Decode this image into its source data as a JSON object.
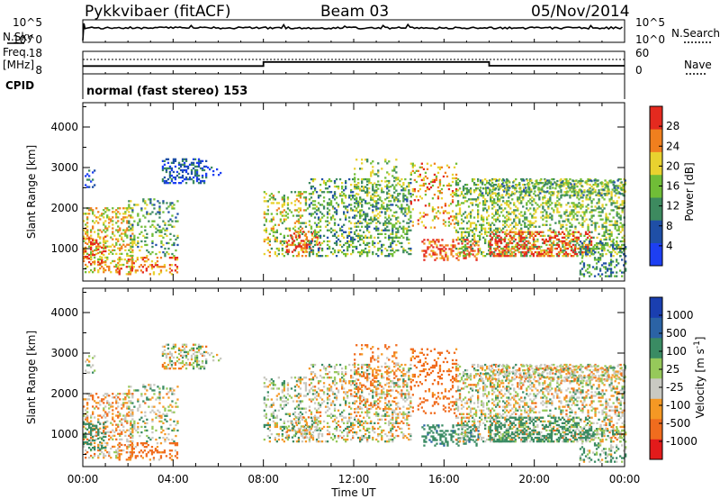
{
  "header": {
    "station": "Pykkvibaer (fitACF)",
    "beam": "Beam 03",
    "date": "05/Nov/2014"
  },
  "panel_labels": {
    "nsky": "N.Sky",
    "nsearch": "N.Search",
    "freq_line1": "Freq.",
    "freq_line2": "[MHz]",
    "nave": "Nave",
    "cpid": "CPID",
    "cpid_text": "normal (fast stereo) 153"
  },
  "colors": {
    "power": [
      "#1d3ff2",
      "#1f4fa6",
      "#3d8a5f",
      "#70bd37",
      "#e8d22f",
      "#f07f1e",
      "#e42a1f"
    ],
    "velocity": [
      "#e21b1b",
      "#f06c1e",
      "#f59824",
      "#c9c9c2",
      "#96c95a",
      "#3a8b63",
      "#2b63a5",
      "#1a3fb0"
    ],
    "grey": "#c8c8c0"
  },
  "chart_data": [
    {
      "type": "line",
      "panel": "noise",
      "left_ticks": [
        "10^5",
        "10^0"
      ],
      "right_ticks": [
        "10^5",
        "10^0"
      ],
      "x_range_hours": [
        0,
        24
      ]
    },
    {
      "type": "line",
      "panel": "frequency / nave",
      "left_ticks": [
        "18",
        "8"
      ],
      "right_ticks": [
        "60",
        "0"
      ],
      "segments": [
        {
          "x": [
            0,
            8
          ],
          "y_mhz": 11.5
        },
        {
          "x": [
            8,
            18
          ],
          "y_mhz": 13.3
        },
        {
          "x": [
            18,
            24
          ],
          "y_mhz": 11.6
        }
      ]
    },
    {
      "type": "heatmap",
      "panel": "power",
      "ylabel": "Slant Range [km]",
      "yticks": [
        "1000",
        "2000",
        "3000",
        "4000"
      ],
      "ylim": [
        200,
        4600
      ],
      "colorbar_title": "Power [dB]",
      "colorbar_ticks": [
        "4",
        "8",
        "12",
        "16",
        "20",
        "24",
        "28"
      ],
      "xticks": [
        "00:00",
        "04:00",
        "08:00",
        "12:00",
        "16:00",
        "20:00",
        "00:00"
      ],
      "xlim_hours": [
        0,
        24
      ]
    },
    {
      "type": "heatmap",
      "panel": "velocity",
      "ylabel": "Slant Range [km]",
      "yticks": [
        "1000",
        "2000",
        "3000",
        "4000"
      ],
      "ylim": [
        200,
        4600
      ],
      "colorbar_title": "Velocity [m s",
      "colorbar_superscript": "-1",
      "colorbar_unit_close": "]",
      "colorbar_ticks": [
        "1000",
        "500",
        "100",
        "25",
        "-25",
        "-100",
        "-500",
        "-1000"
      ],
      "xlabel": "Time UT",
      "xticks": [
        "00:00",
        "04:00",
        "08:00",
        "12:00",
        "16:00",
        "20:00",
        "00:00"
      ],
      "xlim_hours": [
        0,
        24
      ]
    }
  ],
  "echo_regions": [
    {
      "t0": 0.0,
      "t1": 2.2,
      "r0": 400,
      "r1": 2000,
      "p": 20,
      "v": -50,
      "d": 0.3
    },
    {
      "t0": 0.0,
      "t1": 1.0,
      "r0": 600,
      "r1": 1300,
      "p": 26,
      "v": 300,
      "d": 0.35
    },
    {
      "t0": 0.0,
      "t1": 0.5,
      "r0": 2500,
      "r1": 2950,
      "p": 6,
      "v": 20,
      "d": 0.2
    },
    {
      "t0": 2.0,
      "t1": 4.2,
      "r0": 800,
      "r1": 2200,
      "p": 14,
      "v": 20,
      "d": 0.2
    },
    {
      "t0": 1.5,
      "t1": 4.2,
      "r0": 350,
      "r1": 800,
      "p": 24,
      "v": -150,
      "d": 0.25
    },
    {
      "t0": 3.5,
      "t1": 5.5,
      "r0": 2600,
      "r1": 3200,
      "p": 8,
      "v": 10,
      "d": 0.4
    },
    {
      "t0": 5.5,
      "t1": 6.2,
      "r0": 2800,
      "r1": 3000,
      "p": 5,
      "v": 10,
      "d": 0.2
    },
    {
      "t0": 8.0,
      "t1": 10.0,
      "r0": 800,
      "r1": 2400,
      "p": 18,
      "v": 40,
      "d": 0.25
    },
    {
      "t0": 9.0,
      "t1": 10.5,
      "r0": 900,
      "r1": 1400,
      "p": 26,
      "v": 10,
      "d": 0.3
    },
    {
      "t0": 10.0,
      "t1": 14.5,
      "r0": 800,
      "r1": 2700,
      "p": 14,
      "v": 0,
      "d": 0.3
    },
    {
      "t0": 12.0,
      "t1": 14.0,
      "r0": 1600,
      "r1": 3200,
      "p": 16,
      "v": -150,
      "d": 0.15
    },
    {
      "t0": 14.5,
      "t1": 16.5,
      "r0": 1500,
      "r1": 3100,
      "p": 22,
      "v": -200,
      "d": 0.2
    },
    {
      "t0": 15.0,
      "t1": 17.5,
      "r0": 700,
      "r1": 1200,
      "p": 26,
      "v": 400,
      "d": 0.3
    },
    {
      "t0": 16.5,
      "t1": 24.0,
      "r0": 800,
      "r1": 2700,
      "p": 16,
      "v": 0,
      "d": 0.32
    },
    {
      "t0": 18.0,
      "t1": 22.5,
      "r0": 800,
      "r1": 1400,
      "p": 27,
      "v": 200,
      "d": 0.35
    },
    {
      "t0": 17.5,
      "t1": 24.0,
      "r0": 2300,
      "r1": 2700,
      "p": 14,
      "v": 0,
      "d": 0.3
    },
    {
      "t0": 22.0,
      "t1": 24.0,
      "r0": 300,
      "r1": 1200,
      "p": 12,
      "v": 80,
      "d": 0.25
    }
  ]
}
